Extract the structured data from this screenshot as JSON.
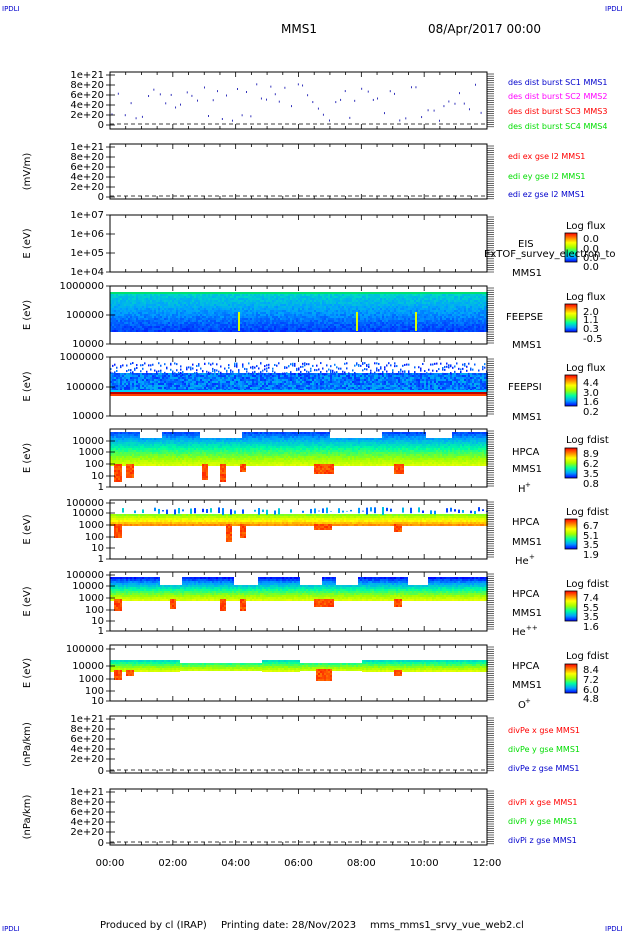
{
  "header": {
    "corner_label": "IPDLI",
    "spacecraft": "MMS1",
    "datetime": "08/Apr/2017 00:00"
  },
  "footer": {
    "produced_by": "Produced by cl (IRAP)",
    "printing_date": "Printing date: 28/Nov/2023",
    "file_name": "mms_mms1_srvy_vue_web2.cl"
  },
  "colors": {
    "red": "#ff0000",
    "green": "#00dd00",
    "blue": "#0000cc",
    "magenta": "#ff00ff",
    "colorbar": [
      "#0000ff",
      "#00a0ff",
      "#00ffa0",
      "#a0ff00",
      "#ffff00",
      "#ff8000",
      "#ff0000"
    ]
  },
  "chart_data": [
    {
      "type": "line",
      "ylabel": "",
      "y_ticks": [
        "1e+21",
        "8e+20",
        "6e+20",
        "4e+20",
        "2e+20",
        "0"
      ],
      "legend": [
        {
          "label": "des dist burst SC1 MMS1",
          "color": "#0000cc"
        },
        {
          "label": "des dist burst SC2 MMS2",
          "color": "#ff00ff"
        },
        {
          "label": "des dist burst SC3 MMS3",
          "color": "#ff0000"
        },
        {
          "label": "des dist burst SC4 MMS4",
          "color": "#00dd00"
        }
      ],
      "x_ticks": [
        "00:00",
        "02:00",
        "04:00",
        "06:00",
        "08:00",
        "10:00",
        "12:00"
      ],
      "values": []
    },
    {
      "type": "line",
      "ylabel": "(mV/m)",
      "y_ticks": [
        "1e+21",
        "8e+20",
        "6e+20",
        "4e+20",
        "2e+20",
        "0"
      ],
      "legend": [
        {
          "label": "edi ex gse l2 MMS1",
          "color": "#ff0000"
        },
        {
          "label": "edi ey gse l2 MMS1",
          "color": "#00dd00"
        },
        {
          "label": "edi ez gse l2 MMS1",
          "color": "#0000cc"
        }
      ],
      "values": []
    },
    {
      "type": "heatmap",
      "ylabel": "E (eV)",
      "y_ticks": [
        "1e+07",
        "1e+06",
        "1e+05",
        "1e+04"
      ],
      "instrument": "EIS",
      "spacecraft": "MMS1",
      "overlay_text": "ExTOF_survey_electron_to",
      "colorbar_title": "Log flux",
      "colorbar_ticks": [
        "0.0",
        "0.0",
        "0.0",
        "0.0"
      ],
      "values": []
    },
    {
      "type": "heatmap",
      "ylabel": "E (eV)",
      "y_ticks": [
        "1000000",
        "100000",
        "10000"
      ],
      "instrument": "FEEPSE",
      "spacecraft": "MMS1",
      "colorbar_title": "Log flux",
      "colorbar_ticks": [
        "2.0",
        "1.1",
        "0.3",
        "-0.5"
      ]
    },
    {
      "type": "heatmap",
      "ylabel": "E (eV)",
      "y_ticks": [
        "1000000",
        "100000",
        "10000"
      ],
      "instrument": "FEEPSI",
      "spacecraft": "MMS1",
      "colorbar_title": "Log flux",
      "colorbar_ticks": [
        "4.4",
        "3.0",
        "1.6",
        "0.2"
      ]
    },
    {
      "type": "heatmap",
      "ylabel": "E (eV)",
      "y_ticks": [
        "10000",
        "1000",
        "100",
        "10",
        "1"
      ],
      "instrument": "HPCA",
      "spacecraft": "MMS1",
      "species": "H",
      "species_sup": "+",
      "colorbar_title": "Log fdist",
      "colorbar_ticks": [
        "8.9",
        "6.2",
        "3.5",
        "0.8"
      ]
    },
    {
      "type": "heatmap",
      "ylabel": "E (eV)",
      "y_ticks": [
        "100000",
        "10000",
        "1000",
        "100",
        "10",
        "1"
      ],
      "instrument": "HPCA",
      "spacecraft": "MMS1",
      "species": "He",
      "species_sup": "+",
      "colorbar_title": "Log fdist",
      "colorbar_ticks": [
        "6.7",
        "5.1",
        "3.5",
        "1.9"
      ]
    },
    {
      "type": "heatmap",
      "ylabel": "E (eV)",
      "y_ticks": [
        "100000",
        "10000",
        "1000",
        "100",
        "10",
        "1"
      ],
      "instrument": "HPCA",
      "spacecraft": "MMS1",
      "species": "He",
      "species_sup": "++",
      "colorbar_title": "Log fdist",
      "colorbar_ticks": [
        "7.4",
        "5.5",
        "3.5",
        "1.6"
      ]
    },
    {
      "type": "heatmap",
      "ylabel": "E (eV)",
      "y_ticks": [
        "100000",
        "10000",
        "1000",
        "100",
        "10"
      ],
      "instrument": "HPCA",
      "spacecraft": "MMS1",
      "species": "O",
      "species_sup": "+",
      "colorbar_title": "Log fdist",
      "colorbar_ticks": [
        "8.4",
        "7.2",
        "6.0",
        "4.8"
      ]
    },
    {
      "type": "line",
      "ylabel": "(nPa/km)",
      "y_ticks": [
        "1e+21",
        "8e+20",
        "6e+20",
        "4e+20",
        "2e+20",
        "0"
      ],
      "legend": [
        {
          "label": "divPe x gse MMS1",
          "color": "#ff0000"
        },
        {
          "label": "divPe y gse MMS1",
          "color": "#00dd00"
        },
        {
          "label": "divPe z gse MMS1",
          "color": "#0000cc"
        }
      ],
      "values": []
    },
    {
      "type": "line",
      "ylabel": "(nPa/km)",
      "y_ticks": [
        "1e+21",
        "8e+20",
        "6e+20",
        "4e+20",
        "2e+20",
        "0"
      ],
      "legend": [
        {
          "label": "divPi x gse MMS1",
          "color": "#ff0000"
        },
        {
          "label": "divPi y gse MMS1",
          "color": "#00dd00"
        },
        {
          "label": "divPi z gse MMS1",
          "color": "#0000cc"
        }
      ],
      "values": []
    }
  ]
}
